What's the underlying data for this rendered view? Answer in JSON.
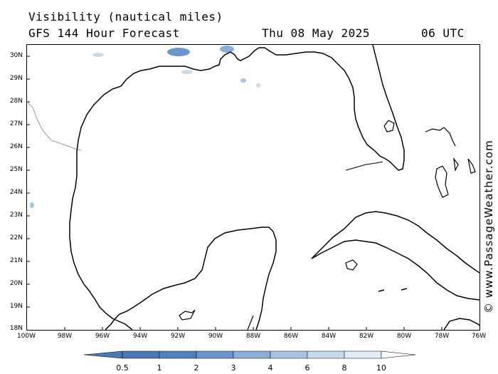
{
  "header": {
    "title_line1": "Visibility (nautical miles)",
    "title_line2": "GFS 144 Hour Forecast",
    "forecast_date": "Thu 08 May 2025",
    "forecast_time": "06 UTC"
  },
  "map": {
    "latitude_labels": [
      "30N",
      "29N",
      "28N",
      "27N",
      "26N",
      "25N",
      "24N",
      "23N",
      "22N",
      "21N",
      "20N",
      "19N",
      "18N"
    ],
    "longitude_labels": [
      "100W",
      "98W",
      "96W",
      "94W",
      "92W",
      "90W",
      "88W",
      "86W",
      "84W",
      "82W",
      "80W",
      "78W",
      "76W"
    ],
    "extent": {
      "lon_min": -100,
      "lon_max": -76,
      "lat_min": 18,
      "lat_max": 30.5
    }
  },
  "legend": {
    "tick_labels": [
      "0.5",
      "1",
      "2",
      "3",
      "4",
      "6",
      "8",
      "10"
    ],
    "colors": [
      "#4a78b8",
      "#4f82c2",
      "#6a96cd",
      "#8aaed8",
      "#a9c4e3",
      "#c8daee",
      "#e2ecf7",
      "#f6f9fd"
    ]
  },
  "credit": "© www.PassageWeather.com"
}
